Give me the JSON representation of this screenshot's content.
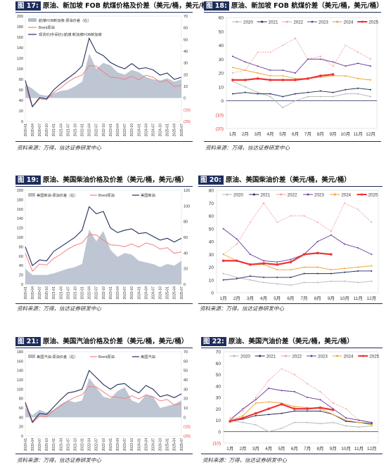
{
  "panels": [
    {
      "id": "p17",
      "title_tag": "图 17:",
      "title_text": "原油、新加坡 FOB 航煤价格及价差（美元/桶，美元/桶）",
      "source": "资料来源：万得，信达证券研发中心"
    },
    {
      "id": "p18",
      "title_tag": "图 18:",
      "title_text": "原油、新加坡 FOB 航煤价差（美元/桶，美元/桶）",
      "source": "资料来源：万得，信达证券研发中心"
    },
    {
      "id": "p19",
      "title_tag": "图 19:",
      "title_text": "原油、美国柴油价格及价差（美元/桶，美元/桶）",
      "source": "资料来源：万得，信达证券研发中心"
    },
    {
      "id": "p20",
      "title_tag": "图 20:",
      "title_text": "原油、美国柴油价差（美元/桶，美元/桶）",
      "source": "资料来源：万得，信达证券研发中心"
    },
    {
      "id": "p21",
      "title_tag": "图 21:",
      "title_text": "原油、美国汽油价格及价差（美元/桶，美元/桶）",
      "source": "资料来源：万得，信达证券研发中心"
    },
    {
      "id": "p22",
      "title_tag": "图 22:",
      "title_text": "原油、美国汽油价差（美元/桶，美元/桶）",
      "source": "资料来源：万得，信达证券研发中心"
    }
  ],
  "chart_data": [
    {
      "id": "p17",
      "type": "area",
      "dates": [
        "2020-01",
        "2020-04",
        "2020-07",
        "2020-10",
        "2021-01",
        "2021-04",
        "2021-07",
        "2021-10",
        "2022-01",
        "2022-04",
        "2022-07",
        "2022-10",
        "2023-01",
        "2023-04",
        "2023-07",
        "2023-10",
        "2024-01",
        "2024-04",
        "2024-07",
        "2024-10",
        "2025-01",
        "2025-04",
        "2025-07"
      ],
      "y_left_ticks": [
        0,
        20,
        40,
        60,
        80,
        100,
        120,
        140,
        160,
        180,
        200
      ],
      "y_right_ticks": [
        "(20)",
        "(10)",
        "0",
        "10",
        "20",
        "30",
        "40",
        "50",
        "60",
        "70"
      ],
      "ylim_left": [
        0,
        200
      ],
      "ylim_right": [
        -20,
        70
      ],
      "series": [
        {
          "name": "航煤FOB新加坡-原油价差（右）",
          "axis": "right",
          "color": "#b3bccb",
          "values": [
            12,
            8,
            3,
            2,
            4,
            6,
            7,
            10,
            14,
            38,
            25,
            30,
            28,
            22,
            20,
            24,
            22,
            18,
            16,
            15,
            17,
            14,
            16
          ]
        },
        {
          "name": "Brent原油",
          "axis": "left",
          "color": "#f08080",
          "values": [
            66,
            28,
            43,
            41,
            55,
            64,
            75,
            83,
            88,
            106,
            105,
            94,
            84,
            83,
            80,
            86,
            79,
            88,
            84,
            75,
            78,
            66,
            69
          ]
        },
        {
          "name": "现货价(中间价):航煤:新加坡FOB新加坡",
          "axis": "left",
          "color": "#1f2d5c",
          "values": [
            78,
            28,
            45,
            43,
            60,
            72,
            82,
            92,
            105,
            158,
            132,
            125,
            112,
            105,
            100,
            110,
            100,
            102,
            98,
            88,
            92,
            80,
            84
          ]
        }
      ],
      "legend": "top-left"
    },
    {
      "id": "p18",
      "type": "line",
      "categories": [
        "1月",
        "2月",
        "3月",
        "4月",
        "5月",
        "6月",
        "7月",
        "8月",
        "9月",
        "10月",
        "11月",
        "12月"
      ],
      "ylim": [
        -20,
        60
      ],
      "y_ticks": [
        "(20)",
        "(10)",
        "0",
        "10",
        "20",
        "30",
        "40",
        "50",
        "60"
      ],
      "series": [
        {
          "name": "2020",
          "color": "#b7b7b7",
          "values": [
            14,
            10,
            6,
            3,
            -5,
            0,
            3,
            3,
            3,
            5,
            5,
            3
          ]
        },
        {
          "name": "2021",
          "color": "#1f2d5c",
          "values": [
            5,
            6,
            5,
            5,
            3,
            5,
            6,
            7,
            6,
            8,
            9,
            8
          ]
        },
        {
          "name": "2022",
          "color": "#f4a0a0",
          "values": [
            20,
            22,
            35,
            35,
            40,
            45,
            30,
            32,
            25,
            40,
            35,
            30
          ]
        },
        {
          "name": "2023",
          "color": "#6a3d9a",
          "values": [
            32,
            28,
            25,
            22,
            22,
            20,
            30,
            30,
            28,
            25,
            27,
            25
          ]
        },
        {
          "name": "2024",
          "color": "#f0a030",
          "values": [
            24,
            22,
            20,
            18,
            18,
            16,
            16,
            17,
            18,
            18,
            16,
            15
          ]
        },
        {
          "name": "2025",
          "color": "#ee3333",
          "values": [
            15,
            15,
            16,
            15,
            15,
            15,
            16,
            18,
            19,
            null,
            null,
            null
          ]
        }
      ],
      "legend": "top"
    },
    {
      "id": "p19",
      "type": "area",
      "dates": [
        "2020-01",
        "2020-04",
        "2020-07",
        "2020-10",
        "2021-01",
        "2021-04",
        "2021-07",
        "2021-10",
        "2022-01",
        "2022-04",
        "2022-07",
        "2022-10",
        "2023-01",
        "2023-04",
        "2023-07",
        "2023-10",
        "2024-01",
        "2024-04",
        "2024-07",
        "2024-10",
        "2025-01",
        "2025-04",
        "2025-07"
      ],
      "y_left_ticks": [
        0,
        20,
        40,
        60,
        80,
        100,
        120,
        140,
        160,
        180,
        200
      ],
      "y_right_ticks": [
        "0",
        "20",
        "40",
        "60",
        "80",
        "100",
        "120"
      ],
      "ylim_left": [
        0,
        200
      ],
      "ylim_right": [
        0,
        120
      ],
      "series": [
        {
          "name": "美国柴油-原油价差（右）",
          "axis": "right",
          "color": "#b3bccb",
          "values": [
            20,
            12,
            12,
            12,
            14,
            17,
            20,
            22,
            26,
            70,
            55,
            68,
            44,
            35,
            40,
            38,
            30,
            28,
            26,
            22,
            26,
            24,
            30
          ]
        },
        {
          "name": "Brent原油",
          "axis": "left",
          "color": "#f08080",
          "values": [
            66,
            28,
            43,
            41,
            55,
            64,
            75,
            83,
            88,
            106,
            105,
            94,
            84,
            83,
            80,
            86,
            79,
            88,
            84,
            75,
            78,
            66,
            69
          ]
        },
        {
          "name": "美国柴油",
          "axis": "left",
          "color": "#1f2d5c",
          "values": [
            80,
            40,
            52,
            50,
            70,
            80,
            90,
            100,
            115,
            165,
            150,
            155,
            120,
            110,
            115,
            118,
            108,
            110,
            102,
            94,
            98,
            90,
            98
          ]
        }
      ],
      "legend": "top"
    },
    {
      "id": "p20",
      "type": "line",
      "categories": [
        "1月",
        "2月",
        "3月",
        "4月",
        "5月",
        "6月",
        "7月",
        "8月",
        "9月",
        "10月",
        "11月",
        "12月"
      ],
      "ylim": [
        0,
        80
      ],
      "y_ticks": [
        "0",
        "10",
        "20",
        "30",
        "40",
        "50",
        "60",
        "70",
        "80"
      ],
      "series": [
        {
          "name": "2020",
          "color": "#b7b7b7",
          "values": [
            15,
            12,
            10,
            8,
            7,
            6,
            8,
            8,
            9,
            9,
            8,
            9
          ]
        },
        {
          "name": "2021",
          "color": "#1f2d5c",
          "values": [
            10,
            11,
            13,
            12,
            12,
            12,
            15,
            15,
            15,
            16,
            17,
            17
          ]
        },
        {
          "name": "2022",
          "color": "#f4a0a0",
          "values": [
            30,
            38,
            55,
            70,
            55,
            60,
            60,
            55,
            48,
            70,
            65,
            55
          ]
        },
        {
          "name": "2023",
          "color": "#6a3d9a",
          "values": [
            50,
            42,
            30,
            25,
            24,
            26,
            30,
            40,
            45,
            38,
            35,
            30
          ]
        },
        {
          "name": "2024",
          "color": "#f0a030",
          "values": [
            30,
            25,
            22,
            22,
            18,
            18,
            20,
            20,
            18,
            19,
            20,
            21
          ]
        },
        {
          "name": "2025",
          "color": "#ee3333",
          "values": [
            25,
            25,
            22,
            23,
            22,
            24,
            30,
            31,
            30,
            null,
            null,
            null
          ]
        }
      ],
      "legend": "top"
    },
    {
      "id": "p21",
      "type": "area",
      "dates": [
        "2020-01",
        "2020-04",
        "2020-07",
        "2020-10",
        "2021-01",
        "2021-04",
        "2021-07",
        "2021-10",
        "2022-01",
        "2022-04",
        "2022-07",
        "2022-10",
        "2023-01",
        "2023-04",
        "2023-07",
        "2023-10",
        "2024-01",
        "2024-04",
        "2024-07",
        "2024-10",
        "2025-01",
        "2025-04",
        "2025-07"
      ],
      "y_left_ticks": [
        0,
        20,
        40,
        60,
        80,
        100,
        120,
        140,
        160,
        180
      ],
      "y_right_ticks": [
        "(20)",
        "(10)",
        "0",
        "10",
        "20",
        "30",
        "40",
        "50",
        "60",
        "70"
      ],
      "ylim_left": [
        0,
        180
      ],
      "ylim_right": [
        -20,
        70
      ],
      "series": [
        {
          "name": "美国汽油-原油价差（右）",
          "axis": "right",
          "color": "#b3bccb",
          "values": [
            10,
            2,
            8,
            5,
            8,
            14,
            18,
            16,
            18,
            42,
            32,
            22,
            20,
            28,
            32,
            18,
            15,
            24,
            22,
            10,
            12,
            14,
            18
          ]
        },
        {
          "name": "Brent原油",
          "axis": "left",
          "color": "#f08080",
          "values": [
            66,
            28,
            43,
            41,
            55,
            64,
            75,
            83,
            88,
            106,
            105,
            94,
            84,
            83,
            80,
            86,
            79,
            88,
            84,
            75,
            78,
            66,
            69
          ]
        },
        {
          "name": "美国汽油",
          "axis": "left",
          "color": "#1f2d5c",
          "values": [
            72,
            30,
            48,
            46,
            62,
            78,
            92,
            95,
            100,
            140,
            125,
            110,
            100,
            110,
            112,
            100,
            92,
            108,
            100,
            84,
            88,
            82,
            90
          ]
        }
      ],
      "legend": "top"
    },
    {
      "id": "p22",
      "type": "line",
      "categories": [
        "1月",
        "2月",
        "3月",
        "4月",
        "5月",
        "6月",
        "7月",
        "8月",
        "9月",
        "10月",
        "11月",
        "12月"
      ],
      "ylim": [
        -10,
        70
      ],
      "y_ticks": [
        "(10)",
        "0",
        "10",
        "20",
        "30",
        "40",
        "50",
        "60",
        "70"
      ],
      "series": [
        {
          "name": "2020",
          "color": "#b7b7b7",
          "values": [
            10,
            8,
            6,
            0,
            3,
            8,
            8,
            7,
            8,
            5,
            4,
            5
          ]
        },
        {
          "name": "2021",
          "color": "#1f2d5c",
          "values": [
            9,
            11,
            14,
            15,
            16,
            18,
            18,
            18,
            15,
            9,
            8,
            7
          ]
        },
        {
          "name": "2022",
          "color": "#f4a0a0",
          "values": [
            12,
            18,
            30,
            45,
            55,
            50,
            42,
            35,
            25,
            20,
            10,
            8
          ]
        },
        {
          "name": "2023",
          "color": "#6a3d9a",
          "values": [
            10,
            20,
            28,
            38,
            36,
            35,
            30,
            28,
            20,
            12,
            10,
            8
          ]
        },
        {
          "name": "2024",
          "color": "#f0a030",
          "values": [
            10,
            14,
            25,
            26,
            25,
            22,
            21,
            20,
            15,
            10,
            8,
            6
          ]
        },
        {
          "name": "2025",
          "color": "#ee3333",
          "values": [
            9,
            12,
            16,
            20,
            24,
            20,
            20,
            21,
            19,
            null,
            null,
            null
          ]
        }
      ],
      "legend": "top"
    }
  ]
}
